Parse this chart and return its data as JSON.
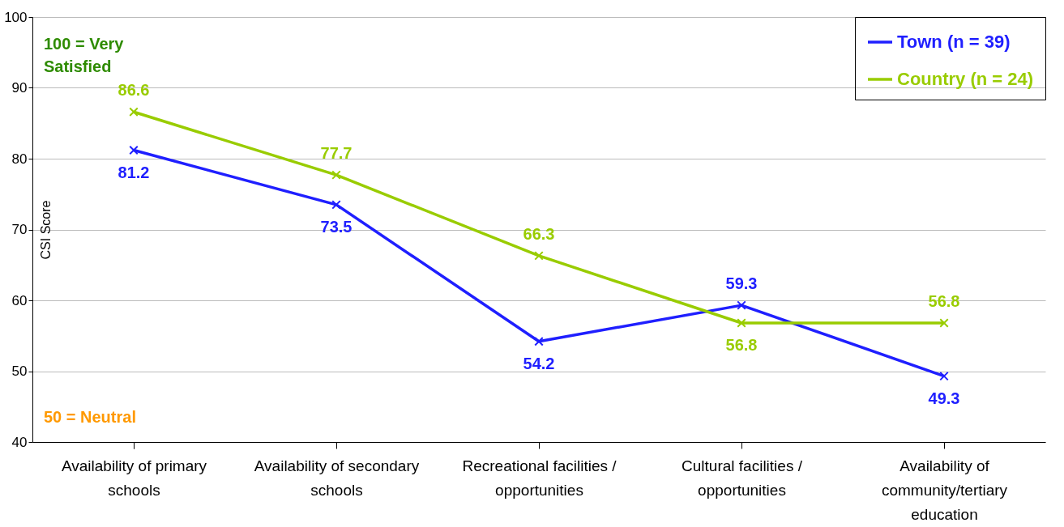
{
  "chart_data": {
    "type": "line",
    "categories": [
      "Availability of primary schools",
      "Availability of secondary schools",
      "Recreational facilities / opportunities",
      "Cultural facilities / opportunities",
      "Availability of community/tertiary education"
    ],
    "series": [
      {
        "name": "Town (n = 39)",
        "color": "#1f1fff",
        "values": [
          81.2,
          73.5,
          54.2,
          59.3,
          49.3
        ]
      },
      {
        "name": "Country (n = 24)",
        "color": "#99cc00",
        "values": [
          86.6,
          77.7,
          66.3,
          56.8,
          56.8
        ]
      }
    ],
    "ylabel": "CSI Score",
    "ylim": [
      40,
      100
    ],
    "yticks": [
      40,
      50,
      60,
      70,
      80,
      90,
      100
    ],
    "annotations": [
      "100 = Very Satisfied",
      "50 = Neutral"
    ],
    "grid": "y",
    "legend": "top right",
    "marker": "cross",
    "data_labels": true,
    "line_style": "solid"
  }
}
